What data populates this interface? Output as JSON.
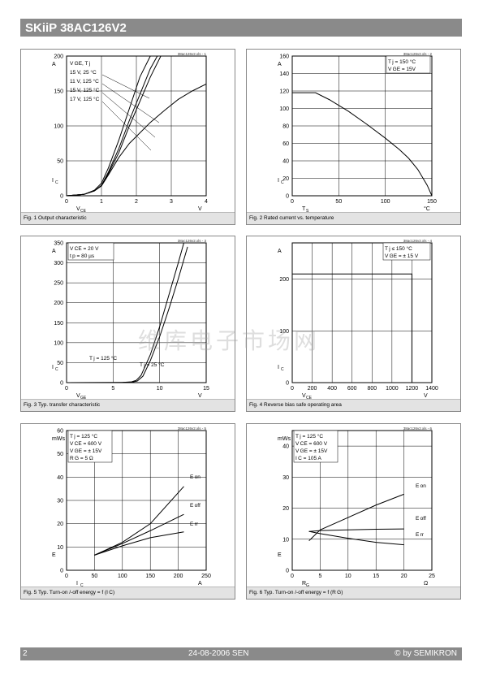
{
  "header": {
    "title": "SKiiP 38AC126V2"
  },
  "footer": {
    "page": "2",
    "date": "24-08-2006  SEN",
    "copyright": "© by SEMIKRON"
  },
  "watermark": "维库电子市场网",
  "figures": [
    {
      "id": "fig1",
      "caption": "Fig. 1 Output characteristic",
      "file_tag": "38ac126v2.xls - 1",
      "xlabel_main": "V",
      "xlabel_sub": "CE",
      "xunit": "V",
      "ylabel_main": "I",
      "ylabel_sub": "C",
      "yunit": "A",
      "xlim": [
        0,
        4
      ],
      "ylim": [
        0,
        200
      ],
      "xticks": [
        0,
        1,
        2,
        3,
        4
      ],
      "yticks": [
        0,
        50,
        100,
        150,
        200
      ],
      "legend_lines": [
        "V GE,    T j",
        "15 V,   25 °C",
        "11 V, 125 °C",
        "15 V, 125 °C",
        "17 V, 125 °C"
      ],
      "chart_data": {
        "type": "line",
        "title": "",
        "series": [
          {
            "name": "15 V, 25 °C",
            "x": [
              0,
              0.5,
              0.8,
              1.0,
              1.2,
              1.5,
              1.8,
              2.1,
              2.4
            ],
            "y": [
              0,
              2,
              8,
              18,
              40,
              80,
              125,
              170,
              200
            ]
          },
          {
            "name": "11 V, 125 °C",
            "x": [
              0,
              0.5,
              0.8,
              1.0,
              1.2,
              1.5,
              1.8,
              2.1,
              2.4,
              2.8,
              3.2,
              3.6,
              4.0
            ],
            "y": [
              0,
              2,
              7,
              14,
              30,
              55,
              75,
              90,
              105,
              122,
              138,
              150,
              160
            ]
          },
          {
            "name": "15 V, 125 °C",
            "x": [
              0,
              0.5,
              0.8,
              1.0,
              1.2,
              1.5,
              1.8,
              2.1,
              2.4,
              2.7
            ],
            "y": [
              0,
              2,
              7,
              15,
              32,
              62,
              100,
              135,
              170,
              200
            ]
          },
          {
            "name": "17 V, 125 °C",
            "x": [
              0,
              0.5,
              0.8,
              1.0,
              1.2,
              1.5,
              1.8,
              2.1,
              2.4,
              2.6
            ],
            "y": [
              0,
              2,
              7,
              15,
              34,
              68,
              108,
              145,
              182,
              200
            ]
          }
        ]
      }
    },
    {
      "id": "fig2",
      "caption": "Fig. 2 Rated current vs. temperature",
      "file_tag": "38ac126v2.xls - 2",
      "xlabel_main": "T",
      "xlabel_sub": "S",
      "xunit": "°C",
      "ylabel_main": "I",
      "ylabel_sub": "C",
      "yunit": "A",
      "xlim": [
        0,
        150
      ],
      "ylim": [
        0,
        160
      ],
      "xticks": [
        0,
        50,
        100,
        150
      ],
      "yticks": [
        0,
        20,
        40,
        60,
        80,
        100,
        120,
        140,
        160
      ],
      "legend_lines": [
        "T j    = 150 °C",
        "V GE = 15V"
      ],
      "chart_data": {
        "type": "line",
        "title": "",
        "series": [
          {
            "name": "",
            "x": [
              0,
              25,
              40,
              60,
              80,
              100,
              115,
              125,
              135,
              145,
              150
            ],
            "y": [
              118,
              118,
              110,
              97,
              82,
              66,
              53,
              43,
              30,
              12,
              0
            ]
          }
        ]
      }
    },
    {
      "id": "fig3",
      "caption": "Fig. 3 Typ. transfer characteristic",
      "file_tag": "38ac126v2.xls - 3",
      "xlabel_main": "V",
      "xlabel_sub": "GE",
      "xunit": "V",
      "ylabel_main": "I",
      "ylabel_sub": "C",
      "yunit": "A",
      "xlim": [
        0,
        15
      ],
      "ylim": [
        0,
        350
      ],
      "xticks": [
        0,
        5,
        10,
        15
      ],
      "yticks": [
        0,
        50,
        100,
        150,
        200,
        250,
        300,
        350
      ],
      "legend_lines": [
        "V CE = 20 V",
        "t p    = 80 µs"
      ],
      "annotations": [
        "T j = 125 °C",
        "T j = 25 °C"
      ],
      "chart_data": {
        "type": "line",
        "title": "",
        "series": [
          {
            "name": "Tj = 125 °C",
            "x": [
              0,
              6,
              7,
              7.5,
              8,
              9,
              10,
              11,
              12,
              12.6
            ],
            "y": [
              0,
              0.5,
              2,
              6,
              18,
              70,
              140,
              220,
              300,
              350
            ]
          },
          {
            "name": "Tj = 25 °C",
            "x": [
              0,
              6,
              7,
              7.6,
              8.2,
              9,
              10,
              11,
              12,
              13
            ],
            "y": [
              0,
              0.5,
              1,
              4,
              16,
              55,
              115,
              185,
              260,
              340
            ]
          }
        ]
      }
    },
    {
      "id": "fig4",
      "caption": "Fig. 4 Reverse bias safe operating area",
      "file_tag": "38ac126v2.xls - 4",
      "xlabel_main": "V",
      "xlabel_sub": "CE",
      "xunit": "V",
      "ylabel_main": "I",
      "ylabel_sub": "C",
      "yunit": "A",
      "xlim": [
        0,
        1400
      ],
      "ylim": [
        0,
        270
      ],
      "xticks": [
        0,
        200,
        400,
        600,
        800,
        1000,
        1200,
        1400
      ],
      "yticks": [
        0,
        100,
        200
      ],
      "legend_lines": [
        "T j    ≤ 150 °C",
        "V GE = ± 15 V"
      ],
      "chart_data": {
        "type": "line",
        "title": "",
        "series": [
          {
            "name": "",
            "x": [
              0,
              1200,
              1200
            ],
            "y": [
              210,
              210,
              0
            ]
          }
        ]
      }
    },
    {
      "id": "fig5",
      "caption": "Fig. 5 Typ. Turn-on /-off energy = f (I C)",
      "file_tag": "38ac126v2.xls - 5",
      "xlabel_main": "I",
      "xlabel_sub": "C",
      "xunit": "A",
      "ylabel_main": "E",
      "ylabel_sub": "",
      "yunit": "mWs",
      "xlim": [
        0,
        250
      ],
      "ylim": [
        0,
        60
      ],
      "xticks": [
        0,
        50,
        100,
        150,
        200,
        250
      ],
      "yticks": [
        0,
        10,
        20,
        30,
        40,
        50,
        60
      ],
      "legend_lines": [
        "T j    = 125 °C",
        "V CE = 600 V",
        "V GE = ± 15V",
        "R G    = 5 Ω"
      ],
      "series_labels": [
        "E on",
        "E off",
        "E rr"
      ],
      "chart_data": {
        "type": "line",
        "title": "",
        "series": [
          {
            "name": "Eon",
            "x": [
              50,
              100,
              150,
              210
            ],
            "y": [
              6.5,
              12,
              20,
              36
            ]
          },
          {
            "name": "Eoff",
            "x": [
              50,
              100,
              150,
              210
            ],
            "y": [
              6.5,
              11.5,
              17,
              24
            ]
          },
          {
            "name": "Err",
            "x": [
              50,
              100,
              150,
              210
            ],
            "y": [
              6.5,
              10.5,
              14,
              16.5
            ]
          }
        ]
      }
    },
    {
      "id": "fig6",
      "caption": "Fig. 6 Typ. Turn-on /-off energy = f (R G)",
      "file_tag": "38ac126v2.xls - 6",
      "xlabel_main": "R",
      "xlabel_sub": "G",
      "xunit": "Ω",
      "ylabel_main": "E",
      "ylabel_sub": "",
      "yunit": "mWs",
      "xlim": [
        0,
        25
      ],
      "ylim": [
        0,
        45
      ],
      "xticks": [
        0,
        5,
        10,
        15,
        20,
        25
      ],
      "yticks": [
        0,
        10,
        20,
        30,
        40
      ],
      "legend_lines": [
        "T j    = 125 °C",
        "V CE = 600 V",
        "V GE = ± 15V",
        "I C    = 105 A"
      ],
      "series_labels": [
        "E on",
        "E off",
        "E rr"
      ],
      "chart_data": {
        "type": "line",
        "title": "",
        "series": [
          {
            "name": "Eon",
            "x": [
              3,
              5,
              10,
              15,
              20
            ],
            "y": [
              9.5,
              13,
              17,
              21,
              24.5
            ]
          },
          {
            "name": "Eoff",
            "x": [
              3,
              5,
              10,
              15,
              20
            ],
            "y": [
              12.5,
              12.8,
              13,
              13.2,
              13.3
            ]
          },
          {
            "name": "Err",
            "x": [
              3,
              5,
              10,
              15,
              20
            ],
            "y": [
              12.5,
              11.8,
              10.3,
              9,
              8.2
            ]
          }
        ]
      }
    }
  ]
}
